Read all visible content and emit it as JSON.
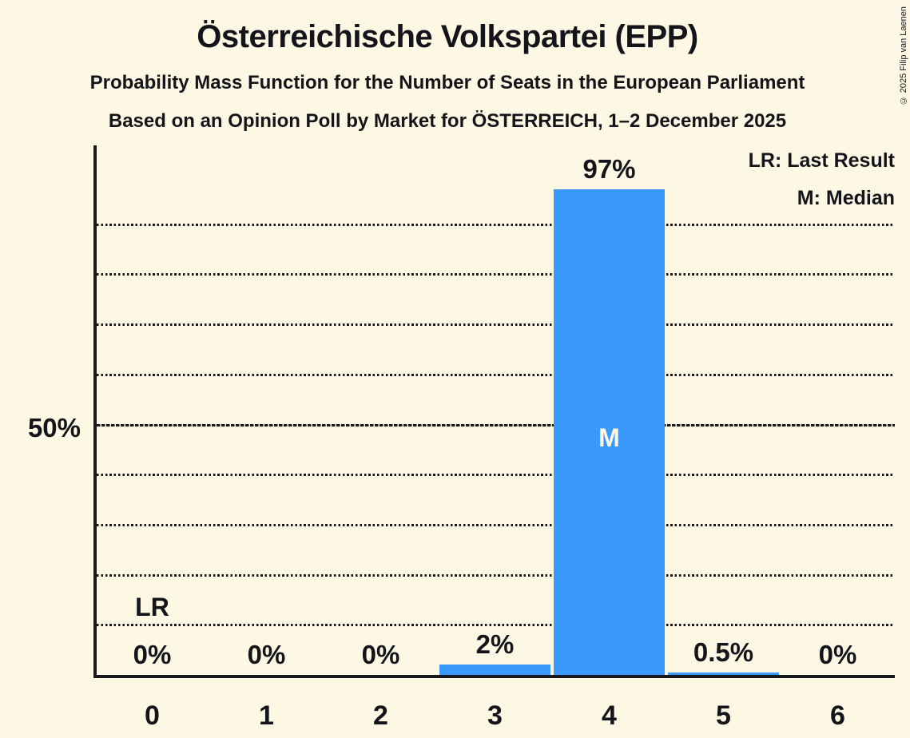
{
  "title": "Österreichische Volkspartei (EPP)",
  "subtitle1": "Probability Mass Function for the Number of Seats in the European Parliament",
  "subtitle2": "Based on an Opinion Poll by Market for ÖSTERREICH, 1–2 December 2025",
  "copyright": "© 2025 Filip van Laenen",
  "legend": {
    "lr": "LR: Last Result",
    "m": "M: Median"
  },
  "y_axis": {
    "tick_label": "50%"
  },
  "annotations": {
    "lr_label": "LR",
    "lr_bar_index": 0,
    "median_label": "M",
    "median_bar_index": 4
  },
  "colors": {
    "background": "#FCF8E3",
    "bar": "#3B99FB",
    "text": "#14151a",
    "median_text": "#FCF8E3"
  },
  "chart_data": {
    "type": "bar",
    "title": "Österreichische Volkspartei (EPP)",
    "categories": [
      "0",
      "1",
      "2",
      "3",
      "4",
      "5",
      "6"
    ],
    "values": [
      0,
      0,
      0,
      2,
      97,
      0.5,
      0
    ],
    "value_labels": [
      "0%",
      "0%",
      "0%",
      "2%",
      "97%",
      "0.5%",
      "0%"
    ],
    "xlabel": "",
    "ylabel": "",
    "ylim": [
      0,
      106
    ],
    "gridline_interval_pct": 10,
    "emphasized_gridline_pct": 50,
    "grid": "dotted horizontal lines, solid dashed line at 50%",
    "legend_position": "top-right",
    "last_result_seats": 0,
    "median_seats": 4
  }
}
